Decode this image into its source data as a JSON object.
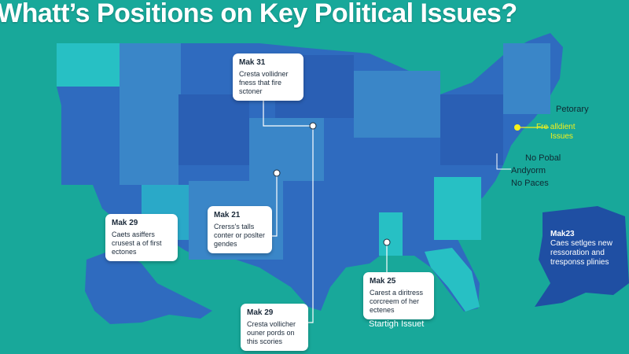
{
  "title": "Whatt’s Positions on Key Political Issues?",
  "colors": {
    "background": "#18a89a",
    "state_dark": "#2f6bbf",
    "state_mid": "#3a86c8",
    "state_light": "#2aa9c8",
    "state_teal": "#27c0c4",
    "alaska": "#1f4fa3",
    "line": "#ffffff",
    "highlight": "#f4f11a"
  },
  "callouts": {
    "north": {
      "title": "Mak 31",
      "body": "Cresta vollidner fness that fire sctoner"
    },
    "southwest": {
      "title": "Mak 29",
      "body": "Caets asiffers crusest a of first ectones"
    },
    "central": {
      "title": "Mak 21",
      "body": "Crerss's talls conter or poslter gendes"
    },
    "southeast": {
      "title": "Mak 25",
      "body": "Carest a diritress corcreem of her ectenes"
    },
    "south": {
      "title": "Mak 29",
      "body": "Cresta vollicher ouner pords on this scories"
    }
  },
  "side_labels": {
    "petorary": "Petorary",
    "highlight_line1": "Fre alldient",
    "highlight_line2": "Issues",
    "no_pobal": "No Pobal",
    "andyorm": "Andyorm",
    "no_paces": "No Paces"
  },
  "alaska_note": {
    "title": "Mak23",
    "body": "Caes setlges new ressoration and tresponss plinies"
  },
  "footer_label": "Startigh Issuet"
}
